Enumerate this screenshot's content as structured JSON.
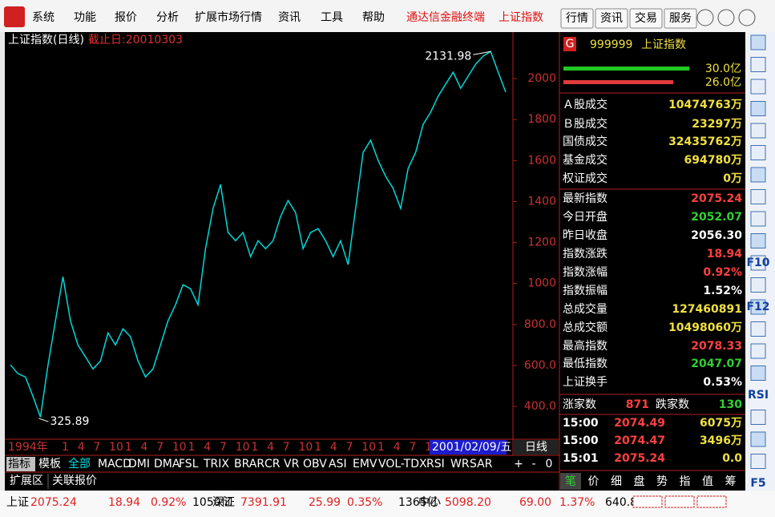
{
  "menu": [
    "系统",
    "功能",
    "报价",
    "分析",
    "扩展市场行情",
    "资讯",
    "工具",
    "帮助"
  ],
  "brand": [
    "通达信金融终端",
    "上证指数"
  ],
  "top_buttons": [
    "行情",
    "资讯",
    "交易",
    "服务"
  ],
  "chart_data": {
    "type": "line",
    "title": "上证指数(日线)",
    "subtitle": "截止日:20010303",
    "color": "#00d8d8",
    "values": [
      603,
      560,
      544,
      450,
      348,
      600,
      818,
      1033,
      818,
      700,
      642,
      583,
      622,
      759,
      700,
      779,
      740,
      622,
      544,
      583,
      700,
      818,
      896,
      994,
      974,
      896,
      1170,
      1366,
      1483,
      1249,
      1209,
      1249,
      1131,
      1209,
      1170,
      1209,
      1327,
      1405,
      1346,
      1170,
      1249,
      1268,
      1209,
      1131,
      1209,
      1092,
      1366,
      1640,
      1699,
      1601,
      1523,
      1464,
      1366,
      1562,
      1640,
      1777,
      1836,
      1914,
      1973,
      2031,
      1953,
      2012,
      2070,
      2110,
      2131.98,
      2031,
      1934
    ],
    "ylim": [
      240,
      2227
    ],
    "yticks": [
      {
        "value": 400,
        "label": "400.0"
      },
      {
        "value": 600,
        "label": "600.0"
      },
      {
        "value": 800,
        "label": "800.0"
      },
      1000,
      1200,
      1400,
      1600,
      1800,
      2000
    ],
    "annotations": [
      {
        "value": 2131.98,
        "label": "2131.98"
      },
      {
        "value": 325.89,
        "label": "325.89"
      }
    ],
    "time_labels": [
      "1994年",
      "1",
      "4",
      "7",
      "10",
      "1",
      "4",
      "7",
      "10",
      "1",
      "4",
      "7",
      "10",
      "1",
      "4",
      "7",
      "10",
      "1",
      "4",
      "7",
      "10",
      "1",
      "4",
      "7",
      "10"
    ],
    "cursor_date": "2001/02/09/五",
    "period": "日线"
  },
  "tabs": [
    "指标",
    "模板",
    "全部",
    "MACD",
    "DMI",
    "DMA",
    "FSL",
    "TRIX",
    "BRAR",
    "CR",
    "VR",
    "OBV",
    "ASI",
    "EMV",
    "VOL-TDX",
    "RSI",
    "WR",
    "SAR"
  ],
  "tab_controls": [
    "+",
    "-",
    "0"
  ],
  "sub_tabs": [
    "扩展区",
    "关联报价"
  ],
  "quote": {
    "badge": "G",
    "code": "999999",
    "name": "上证指数",
    "volume_bars": [
      {
        "label": "30.0亿",
        "color": "#22c822"
      },
      {
        "label": "26.0亿",
        "color": "#e03a3a"
      }
    ],
    "rows": [
      {
        "label": "Ａ股成交",
        "value": "10474763万",
        "color": "#f0e040"
      },
      {
        "label": "Ｂ股成交",
        "value": "23297万",
        "color": "#f0e040"
      },
      {
        "label": "国债成交",
        "value": "32435762万",
        "color": "#f0e040"
      },
      {
        "label": "基金成交",
        "value": "694780万",
        "color": "#f0e040"
      },
      {
        "label": "权证成交",
        "value": "0万",
        "color": "#f0e040"
      },
      {
        "label": "最新指数",
        "value": "2075.24",
        "color": "#ff4040"
      },
      {
        "label": "今日开盘",
        "value": "2052.07",
        "color": "#30d030"
      },
      {
        "label": "昨日收盘",
        "value": "2056.30",
        "color": "#ffffff"
      },
      {
        "label": "指数涨跌",
        "value": "18.94",
        "color": "#ff4040"
      },
      {
        "label": "指数涨幅",
        "value": "0.92%",
        "color": "#ff4040"
      },
      {
        "label": "指数振幅",
        "value": "1.52%",
        "color": "#ffffff"
      },
      {
        "label": "总成交量",
        "value": "127460891",
        "color": "#f0e040"
      },
      {
        "label": "总成交额",
        "value": "10498060万",
        "color": "#f0e040"
      },
      {
        "label": "最高指数",
        "value": "2078.33",
        "color": "#ff4040"
      },
      {
        "label": "最低指数",
        "value": "2047.07",
        "color": "#30d030"
      },
      {
        "label": "上证换手",
        "value": "0.53%",
        "color": "#ffffff"
      }
    ],
    "breadth": [
      "涨家数",
      "871",
      "跌家数",
      "130"
    ],
    "ticks": [
      [
        "15:00",
        "2074.49",
        "6075万"
      ],
      [
        "15:00",
        "2074.47",
        "3496万"
      ],
      [
        "15:01",
        "2075.24",
        "0.0"
      ]
    ],
    "tabs": [
      "笔",
      "价",
      "细",
      "盘",
      "势",
      "指",
      "值",
      "筹"
    ]
  },
  "toolbar_labels": [
    "RSI",
    "F10",
    "F12",
    "F5"
  ],
  "status": [
    {
      "text": "上证",
      "color": "#000000"
    },
    {
      "text": "2075.24",
      "color": "#e02020"
    },
    {
      "text": "18.94",
      "color": "#e02020"
    },
    {
      "text": "0.92%",
      "color": "#e02020"
    },
    {
      "text": "1050亿",
      "color": "#000000"
    },
    {
      "text": "深证",
      "color": "#000000"
    },
    {
      "text": "7391.91",
      "color": "#e02020"
    },
    {
      "text": "25.99",
      "color": "#e02020"
    },
    {
      "text": "0.35%",
      "color": "#e02020"
    },
    {
      "text": "1365亿",
      "color": "#000000"
    },
    {
      "text": "中小",
      "color": "#000000"
    },
    {
      "text": "5098.20",
      "color": "#e02020"
    },
    {
      "text": "69.00",
      "color": "#e02020"
    },
    {
      "text": "1.37%",
      "color": "#e02020"
    },
    {
      "text": "640.8亿",
      "color": "#000000"
    }
  ]
}
